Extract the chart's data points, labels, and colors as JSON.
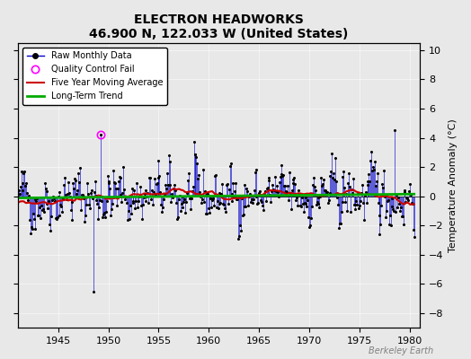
{
  "title": "ELECTRON HEADWORKS",
  "subtitle": "46.900 N, 122.033 W (United States)",
  "ylabel": "Temperature Anomaly (°C)",
  "watermark": "Berkeley Earth",
  "xlim": [
    1941,
    1981
  ],
  "ylim": [
    -9,
    10.5
  ],
  "yticks": [
    -8,
    -6,
    -4,
    -2,
    0,
    2,
    4,
    6,
    8,
    10
  ],
  "xticks": [
    1945,
    1950,
    1955,
    1960,
    1965,
    1970,
    1975,
    1980
  ],
  "bg_color": "#e8e8e8",
  "plot_bg_color": "#e8e8e8",
  "line_color": "#0000cc",
  "ma_color": "#cc0000",
  "trend_color": "#00aa00",
  "qc_color": "#ff00ff",
  "seed": 42,
  "start_year": 1941.0,
  "end_year": 1980.5,
  "qc_x": 1949.25,
  "qc_y": 4.2,
  "spike_neg_x": 1948.5,
  "spike_neg_y": -6.5,
  "spike_pos_x": 1978.5,
  "spike_pos_y": 4.5
}
